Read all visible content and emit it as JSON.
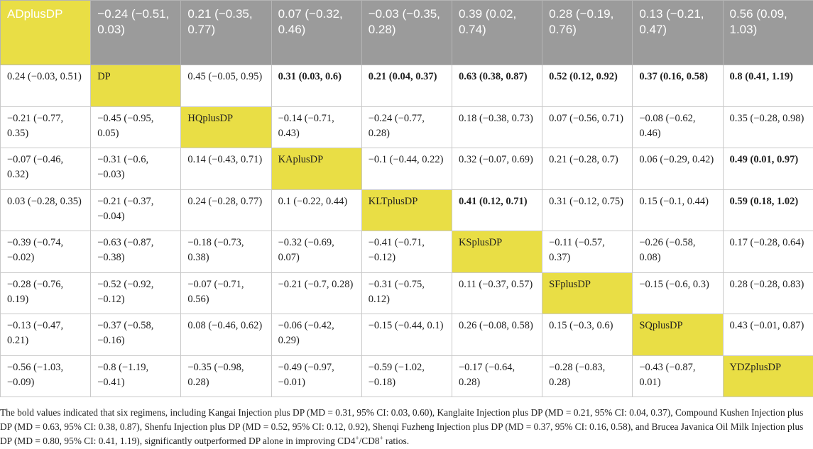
{
  "colors": {
    "diagonal": "#e9de45",
    "header_bg": "#9b9b9b",
    "header_text": "#ffffff"
  },
  "table": {
    "rows": [
      [
        "ADplusDP",
        "−0.24 (−0.51, 0.03)",
        "0.21 (−0.35, 0.77)",
        "0.07 (−0.32, 0.46)",
        "−0.03 (−0.35, 0.28)",
        "0.39 (0.02, 0.74)",
        "0.28 (−0.19, 0.76)",
        "0.13 (−0.21, 0.47)",
        "0.56 (0.09, 1.03)"
      ],
      [
        "0.24 (−0.03, 0.51)",
        "DP",
        "0.45 (−0.05, 0.95)",
        "0.31 (0.03, 0.6)",
        "0.21 (0.04, 0.37)",
        "0.63 (0.38, 0.87)",
        "0.52 (0.12, 0.92)",
        "0.37 (0.16, 0.58)",
        "0.8 (0.41, 1.19)"
      ],
      [
        "−0.21 (−0.77, 0.35)",
        "−0.45 (−0.95, 0.05)",
        "HQplusDP",
        "−0.14 (−0.71, 0.43)",
        "−0.24 (−0.77, 0.28)",
        "0.18 (−0.38, 0.73)",
        "0.07 (−0.56, 0.71)",
        "−0.08 (−0.62, 0.46)",
        "0.35 (−0.28, 0.98)"
      ],
      [
        "−0.07 (−0.46, 0.32)",
        "−0.31 (−0.6, −0.03)",
        "0.14 (−0.43, 0.71)",
        "KAplusDP",
        "−0.1 (−0.44, 0.22)",
        "0.32 (−0.07, 0.69)",
        "0.21 (−0.28, 0.7)",
        "0.06 (−0.29, 0.42)",
        "0.49 (0.01, 0.97)"
      ],
      [
        "0.03 (−0.28, 0.35)",
        "−0.21 (−0.37, −0.04)",
        "0.24 (−0.28, 0.77)",
        "0.1 (−0.22, 0.44)",
        "KLTplusDP",
        "0.41 (0.12, 0.71)",
        "0.31 (−0.12, 0.75)",
        "0.15 (−0.1, 0.44)",
        "0.59 (0.18, 1.02)"
      ],
      [
        "−0.39 (−0.74, −0.02)",
        "−0.63 (−0.87, −0.38)",
        "−0.18 (−0.73, 0.38)",
        "−0.32 (−0.69, 0.07)",
        "−0.41 (−0.71, −0.12)",
        "KSplusDP",
        "−0.11 (−0.57, 0.37)",
        "−0.26 (−0.58, 0.08)",
        "0.17 (−0.28, 0.64)"
      ],
      [
        "−0.28 (−0.76, 0.19)",
        "−0.52 (−0.92, −0.12)",
        "−0.07 (−0.71, 0.56)",
        "−0.21 (−0.7, 0.28)",
        "−0.31 (−0.75, 0.12)",
        "0.11 (−0.37, 0.57)",
        "SFplusDP",
        "−0.15 (−0.6, 0.3)",
        "0.28 (−0.28, 0.83)"
      ],
      [
        "−0.13 (−0.47, 0.21)",
        "−0.37 (−0.58, −0.16)",
        "0.08 (−0.46, 0.62)",
        "−0.06 (−0.42, 0.29)",
        "−0.15 (−0.44, 0.1)",
        "0.26 (−0.08, 0.58)",
        "0.15 (−0.3, 0.6)",
        "SQplusDP",
        "0.43 (−0.01, 0.87)"
      ],
      [
        "−0.56 (−1.03, −0.09)",
        "−0.8 (−1.19, −0.41)",
        "−0.35 (−0.98, 0.28)",
        "−0.49 (−0.97, −0.01)",
        "−0.59 (−1.02, −0.18)",
        "−0.17 (−0.64, 0.28)",
        "−0.28 (−0.83, 0.28)",
        "−0.43 (−0.87, 0.01)",
        "YDZplusDP"
      ]
    ],
    "bold_cells": [
      [
        1,
        3
      ],
      [
        1,
        4
      ],
      [
        1,
        5
      ],
      [
        1,
        6
      ],
      [
        1,
        7
      ],
      [
        1,
        8
      ],
      [
        3,
        8
      ],
      [
        4,
        5
      ],
      [
        4,
        8
      ]
    ]
  },
  "footnote": {
    "text": "The bold values indicated that six regimens, including Kangai Injection plus DP (MD = 0.31, 95% CI: 0.03, 0.60), Kanglaite Injection plus DP (MD = 0.21, 95% CI: 0.04, 0.37), Compound Kushen Injection plus DP (MD = 0.63, 95% CI: 0.38, 0.87), Shenfu Injection plus DP (MD = 0.52, 95% CI: 0.12, 0.92), Shenqi Fuzheng Injection plus DP (MD = 0.37, 95% CI: 0.16, 0.58), and Brucea Javanica Oil Milk Injection plus DP (MD = 0.80, 95% CI: 0.41, 1.19), significantly outperformed DP alone in improving CD4",
    "sup1": "+",
    "mid": "/CD8",
    "sup2": "+",
    "end": " ratios."
  }
}
